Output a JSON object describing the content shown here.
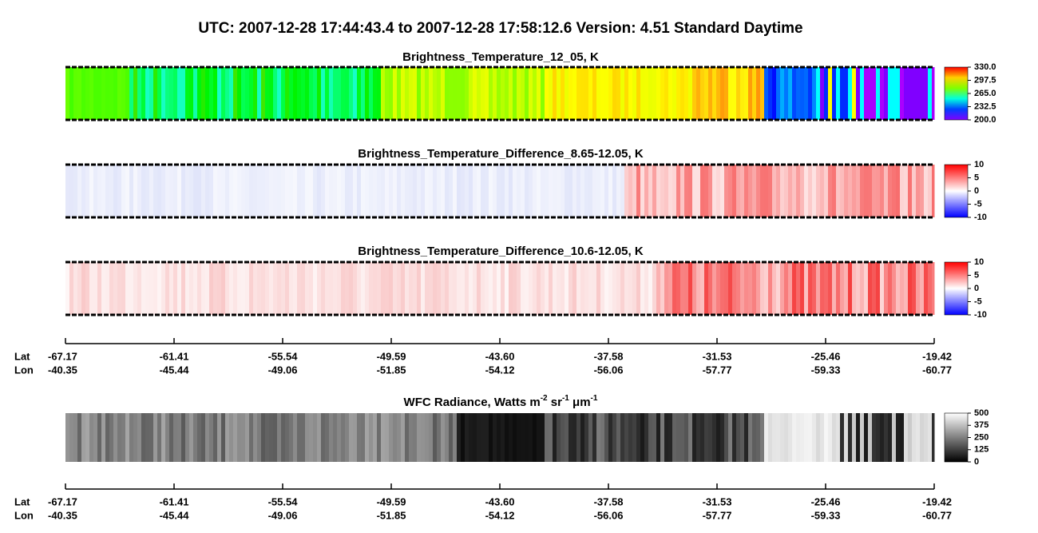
{
  "title": "UTC:  2007-12-28   17:44:43.4  to  2007-12-28   17:58:12.6    Version: 4.51  Standard Daytime",
  "panels": [
    {
      "title": [
        "Brightness_Temperature_12_05, K"
      ],
      "colorbar_ticks": [
        {
          "value": 330,
          "label": "330.0"
        },
        {
          "value": 297.5,
          "label": "297.5"
        },
        {
          "value": 265,
          "label": "265.0"
        },
        {
          "value": 232.5,
          "label": "232.5"
        },
        {
          "value": 200,
          "label": "200.0"
        }
      ]
    },
    {
      "title": [
        "Brightness_Temperature_Difference_8.65-12.05, K"
      ],
      "colorbar_ticks": [
        10,
        5,
        0,
        -5,
        -10
      ]
    },
    {
      "title": [
        "Brightness_Temperature_Difference_10.6-12.05, K"
      ],
      "colorbar_ticks": [
        10,
        5,
        0,
        -5,
        -10
      ]
    },
    {
      "title": [
        "WFC Radiance, Watts m",
        "-2",
        " sr",
        "-1",
        " μm",
        "-1"
      ],
      "colorbar_ticks": [
        500,
        375,
        250,
        125,
        0
      ]
    }
  ],
  "axis": {
    "lat_label": "Lat",
    "lon_label": "Lon",
    "lat": [
      "-67.17",
      "-61.41",
      "-55.54",
      "-49.59",
      "-43.60",
      "-37.58",
      "-31.53",
      "-25.46",
      "-19.42"
    ],
    "lon": [
      "-40.35",
      "-45.44",
      "-49.06",
      "-51.85",
      "-54.12",
      "-56.06",
      "-57.77",
      "-59.33",
      "-60.77"
    ]
  }
}
